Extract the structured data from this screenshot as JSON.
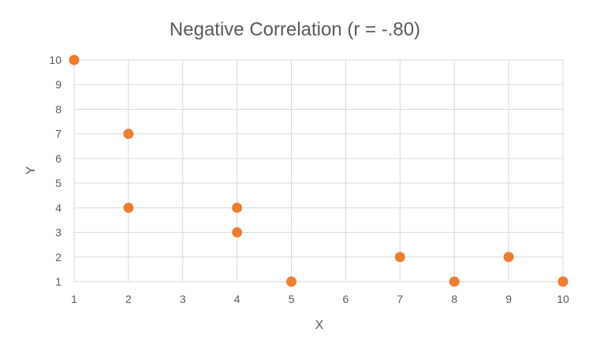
{
  "chart_data": {
    "type": "scatter",
    "title": "Negative Correlation (r = -.80)",
    "xlabel": "X",
    "ylabel": "Y",
    "xlim": [
      1,
      10
    ],
    "ylim": [
      1,
      10
    ],
    "xticks": [
      "1",
      "2",
      "3",
      "4",
      "5",
      "6",
      "7",
      "8",
      "9",
      "10"
    ],
    "yticks": [
      "1",
      "2",
      "3",
      "4",
      "5",
      "6",
      "7",
      "8",
      "9",
      "10"
    ],
    "grid": true,
    "legend": "none",
    "marker_color": "#ed7d31",
    "points": [
      {
        "x": 1,
        "y": 10
      },
      {
        "x": 2,
        "y": 7
      },
      {
        "x": 2,
        "y": 4
      },
      {
        "x": 4,
        "y": 4
      },
      {
        "x": 4,
        "y": 3
      },
      {
        "x": 5,
        "y": 1
      },
      {
        "x": 7,
        "y": 2
      },
      {
        "x": 8,
        "y": 1
      },
      {
        "x": 9,
        "y": 2
      },
      {
        "x": 10,
        "y": 1
      }
    ]
  }
}
